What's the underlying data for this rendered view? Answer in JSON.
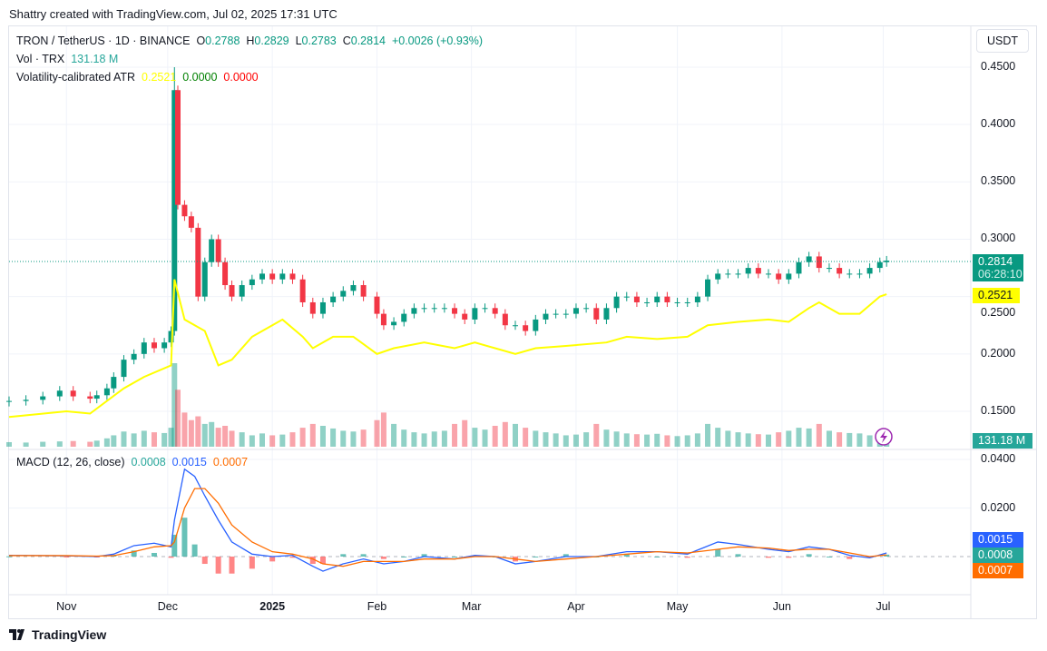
{
  "credit": "Shattry created with TradingView.com, Jul 02, 2025 17:31 UTC",
  "legend": {
    "symbol": "TRON / TetherUS · 1D · BINANCE",
    "o_label": "O",
    "o": "0.2788",
    "h_label": "H",
    "h": "0.2829",
    "l_label": "L",
    "l": "0.2783",
    "c_label": "C",
    "c": "0.2814",
    "change": "+0.0026 (+0.93%)",
    "vol_label": "Vol · TRX",
    "vol": "131.18 M",
    "atr_label": "Volatility-calibrated ATR",
    "atr1": "0.2521",
    "atr2": "0.0000",
    "atr3": "0.0000"
  },
  "currency_button": "USDT",
  "macd_legend": {
    "label": "MACD (12, 26, close)",
    "hist": "0.0008",
    "macd": "0.0015",
    "signal": "0.0007"
  },
  "badges": {
    "price": "0.2814",
    "countdown": "06:28:10",
    "atr": "0.2521",
    "volume": "131.18 M",
    "macd": "0.0015",
    "hist": "0.0008",
    "signal": "0.0007"
  },
  "branding": "TradingView",
  "colors": {
    "up": "#089981",
    "down": "#f23645",
    "atr": "#ffff00",
    "macd": "#2962ff",
    "signal": "#ff6d00",
    "hist_up": "#26a69a",
    "hist_down": "#ff5252"
  },
  "chart_data": {
    "type": "candlestick",
    "price_axis": {
      "ticks": [
        "0.4500",
        "0.4000",
        "0.3500",
        "0.3000",
        "0.2500",
        "0.2000",
        "0.1500"
      ],
      "range": [
        0.14,
        0.46
      ]
    },
    "macd_axis": {
      "ticks": [
        "0.0400",
        "0.0200"
      ]
    },
    "time_axis": {
      "ticks": [
        {
          "label": "Nov",
          "date": "2024-11-01"
        },
        {
          "label": "Dec",
          "date": "2024-12-01"
        },
        {
          "label": "2025",
          "date": "2025-01-01"
        },
        {
          "label": "Feb",
          "date": "2025-02-01"
        },
        {
          "label": "Mar",
          "date": "2025-03-01"
        },
        {
          "label": "Apr",
          "date": "2025-04-01"
        },
        {
          "label": "May",
          "date": "2025-05-01"
        },
        {
          "label": "Jun",
          "date": "2025-06-01"
        },
        {
          "label": "Jul",
          "date": "2025-07-01"
        }
      ]
    },
    "dates": [
      "2024-10-15",
      "2024-10-20",
      "2024-10-25",
      "2024-10-30",
      "2024-11-03",
      "2024-11-08",
      "2024-11-10",
      "2024-11-13",
      "2024-11-15",
      "2024-11-18",
      "2024-11-21",
      "2024-11-24",
      "2024-11-27",
      "2024-11-30",
      "2024-12-02",
      "2024-12-03",
      "2024-12-04",
      "2024-12-06",
      "2024-12-08",
      "2024-12-10",
      "2024-12-12",
      "2024-12-14",
      "2024-12-16",
      "2024-12-18",
      "2024-12-20",
      "2024-12-23",
      "2024-12-26",
      "2024-12-29",
      "2025-01-01",
      "2025-01-04",
      "2025-01-07",
      "2025-01-10",
      "2025-01-13",
      "2025-01-16",
      "2025-01-19",
      "2025-01-22",
      "2025-01-25",
      "2025-01-28",
      "2025-02-01",
      "2025-02-03",
      "2025-02-06",
      "2025-02-09",
      "2025-02-12",
      "2025-02-15",
      "2025-02-18",
      "2025-02-21",
      "2025-02-24",
      "2025-02-27",
      "2025-03-02",
      "2025-03-05",
      "2025-03-08",
      "2025-03-11",
      "2025-03-14",
      "2025-03-17",
      "2025-03-20",
      "2025-03-23",
      "2025-03-26",
      "2025-03-29",
      "2025-04-01",
      "2025-04-04",
      "2025-04-07",
      "2025-04-10",
      "2025-04-13",
      "2025-04-16",
      "2025-04-19",
      "2025-04-22",
      "2025-04-25",
      "2025-04-28",
      "2025-05-01",
      "2025-05-04",
      "2025-05-07",
      "2025-05-10",
      "2025-05-13",
      "2025-05-16",
      "2025-05-19",
      "2025-05-22",
      "2025-05-25",
      "2025-05-28",
      "2025-05-31",
      "2025-06-03",
      "2025-06-06",
      "2025-06-09",
      "2025-06-12",
      "2025-06-15",
      "2025-06-18",
      "2025-06-21",
      "2025-06-24",
      "2025-06-27",
      "2025-06-30",
      "2025-07-02"
    ],
    "close": [
      0.159,
      0.16,
      0.163,
      0.168,
      0.163,
      0.161,
      0.164,
      0.17,
      0.18,
      0.195,
      0.2,
      0.21,
      0.205,
      0.21,
      0.22,
      0.43,
      0.33,
      0.32,
      0.31,
      0.25,
      0.28,
      0.3,
      0.28,
      0.26,
      0.25,
      0.26,
      0.265,
      0.27,
      0.265,
      0.27,
      0.265,
      0.245,
      0.235,
      0.245,
      0.25,
      0.255,
      0.26,
      0.25,
      0.235,
      0.225,
      0.228,
      0.235,
      0.24,
      0.24,
      0.24,
      0.24,
      0.235,
      0.23,
      0.24,
      0.24,
      0.235,
      0.225,
      0.225,
      0.22,
      0.23,
      0.235,
      0.235,
      0.235,
      0.24,
      0.24,
      0.23,
      0.24,
      0.25,
      0.25,
      0.245,
      0.245,
      0.25,
      0.245,
      0.245,
      0.245,
      0.25,
      0.265,
      0.27,
      0.27,
      0.27,
      0.275,
      0.27,
      0.27,
      0.265,
      0.27,
      0.28,
      0.285,
      0.275,
      0.275,
      0.27,
      0.27,
      0.27,
      0.275,
      0.28,
      0.2814
    ],
    "volume_m": [
      120,
      110,
      130,
      140,
      150,
      130,
      160,
      220,
      300,
      400,
      350,
      420,
      380,
      360,
      500,
      2200,
      1500,
      900,
      700,
      800,
      600,
      650,
      500,
      550,
      420,
      380,
      300,
      350,
      300,
      320,
      380,
      500,
      600,
      550,
      480,
      420,
      400,
      450,
      700,
      900,
      600,
      450,
      380,
      350,
      400,
      420,
      600,
      700,
      500,
      450,
      550,
      650,
      600,
      500,
      420,
      380,
      350,
      300,
      320,
      380,
      600,
      450,
      400,
      350,
      330,
      320,
      340,
      300,
      280,
      300,
      350,
      600,
      500,
      420,
      380,
      350,
      330,
      320,
      380,
      420,
      500,
      480,
      600,
      420,
      380,
      360,
      350,
      300,
      250,
      131.18
    ],
    "atr": {
      "dates": [
        "2024-10-15",
        "2024-11-01",
        "2024-11-08",
        "2024-11-18",
        "2024-11-24",
        "2024-12-02",
        "2024-12-03",
        "2024-12-06",
        "2024-12-12",
        "2024-12-16",
        "2024-12-20",
        "2024-12-26",
        "2025-01-01",
        "2025-01-04",
        "2025-01-10",
        "2025-01-13",
        "2025-01-19",
        "2025-01-25",
        "2025-02-01",
        "2025-02-06",
        "2025-02-15",
        "2025-02-24",
        "2025-03-02",
        "2025-03-08",
        "2025-03-14",
        "2025-03-20",
        "2025-03-29",
        "2025-04-10",
        "2025-04-16",
        "2025-04-25",
        "2025-05-04",
        "2025-05-10",
        "2025-05-19",
        "2025-05-28",
        "2025-06-03",
        "2025-06-09",
        "2025-06-12",
        "2025-06-18",
        "2025-06-24",
        "2025-06-30",
        "2025-07-02"
      ],
      "values": [
        0.145,
        0.15,
        0.148,
        0.17,
        0.18,
        0.19,
        0.265,
        0.23,
        0.22,
        0.19,
        0.195,
        0.215,
        0.225,
        0.23,
        0.215,
        0.205,
        0.215,
        0.215,
        0.2,
        0.205,
        0.21,
        0.205,
        0.21,
        0.205,
        0.2,
        0.205,
        0.207,
        0.21,
        0.215,
        0.213,
        0.215,
        0.225,
        0.228,
        0.23,
        0.228,
        0.24,
        0.245,
        0.235,
        0.235,
        0.25,
        0.2521
      ]
    },
    "macd": {
      "dates": [
        "2024-10-15",
        "2024-11-01",
        "2024-11-10",
        "2024-11-15",
        "2024-11-21",
        "2024-11-27",
        "2024-12-02",
        "2024-12-03",
        "2024-12-06",
        "2024-12-09",
        "2024-12-12",
        "2024-12-16",
        "2024-12-20",
        "2024-12-26",
        "2025-01-01",
        "2025-01-07",
        "2025-01-13",
        "2025-01-16",
        "2025-01-22",
        "2025-01-28",
        "2025-02-03",
        "2025-02-09",
        "2025-02-15",
        "2025-02-24",
        "2025-03-02",
        "2025-03-08",
        "2025-03-14",
        "2025-03-20",
        "2025-03-29",
        "2025-04-07",
        "2025-04-16",
        "2025-04-25",
        "2025-05-04",
        "2025-05-13",
        "2025-05-19",
        "2025-05-28",
        "2025-06-03",
        "2025-06-09",
        "2025-06-15",
        "2025-06-21",
        "2025-06-27",
        "2025-07-02"
      ],
      "macd": [
        0.0005,
        0.0003,
        0.0,
        0.001,
        0.0045,
        0.0055,
        0.004,
        0.015,
        0.036,
        0.033,
        0.025,
        0.015,
        0.006,
        0.001,
        0.0,
        0.0005,
        -0.004,
        -0.006,
        -0.003,
        -0.001,
        -0.003,
        -0.002,
        0.0,
        -0.001,
        0.0005,
        0.0,
        -0.003,
        -0.002,
        0.0,
        0.0,
        0.002,
        0.002,
        0.001,
        0.006,
        0.005,
        0.003,
        0.002,
        0.004,
        0.003,
        0.0005,
        -0.0005,
        0.0015
      ],
      "signal": [
        0.0004,
        0.0004,
        0.0002,
        0.0004,
        0.002,
        0.004,
        0.0045,
        0.006,
        0.02,
        0.028,
        0.028,
        0.022,
        0.013,
        0.006,
        0.002,
        0.001,
        -0.001,
        -0.003,
        -0.004,
        -0.002,
        -0.002,
        -0.002,
        -0.001,
        -0.001,
        0.0,
        0.0,
        -0.001,
        -0.002,
        -0.001,
        0.0,
        0.001,
        0.002,
        0.0015,
        0.003,
        0.004,
        0.0035,
        0.0025,
        0.003,
        0.003,
        0.0015,
        0.0,
        0.0007
      ]
    }
  }
}
